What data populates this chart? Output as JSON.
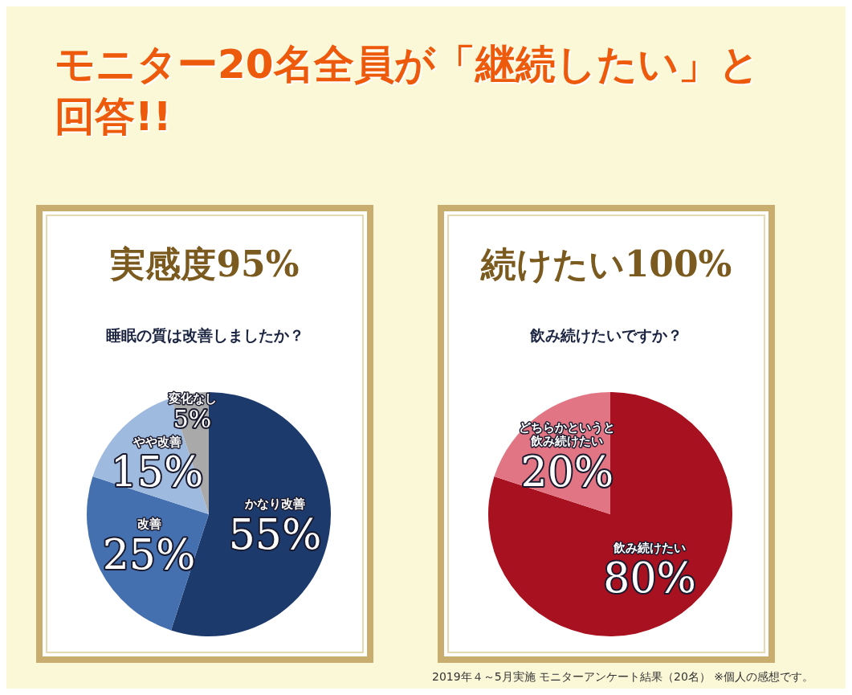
{
  "chart_data": [
    {
      "type": "pie",
      "title": "実感度95%",
      "subtitle": "睡眠の質は改善しましたか？",
      "annotations": [
        "モニター20名全員が「継続したい」と回答!!"
      ],
      "categories": [
        "かなり改善",
        "改善",
        "やや改善",
        "変化なし"
      ],
      "values": [
        55,
        25,
        15,
        5
      ],
      "value_labels": [
        "55%",
        "25%",
        "15%",
        "5%"
      ],
      "colors": [
        "#1d3a6c",
        "#4570b0",
        "#9fbadf",
        "#a9a9a9"
      ]
    },
    {
      "type": "pie",
      "title": "続けたい100%",
      "subtitle": "飲み続けたいですか？",
      "annotations": [
        "2019年４～5月実施 モニターアンケート結果（20名） ※個人の感想です。"
      ],
      "categories": [
        "飲み続けたい",
        "どちらかというと飲み続けたい"
      ],
      "values": [
        80,
        20
      ],
      "value_labels": [
        "80%",
        "20%"
      ],
      "colors": [
        "#a8111f",
        "#e27584"
      ]
    }
  ]
}
